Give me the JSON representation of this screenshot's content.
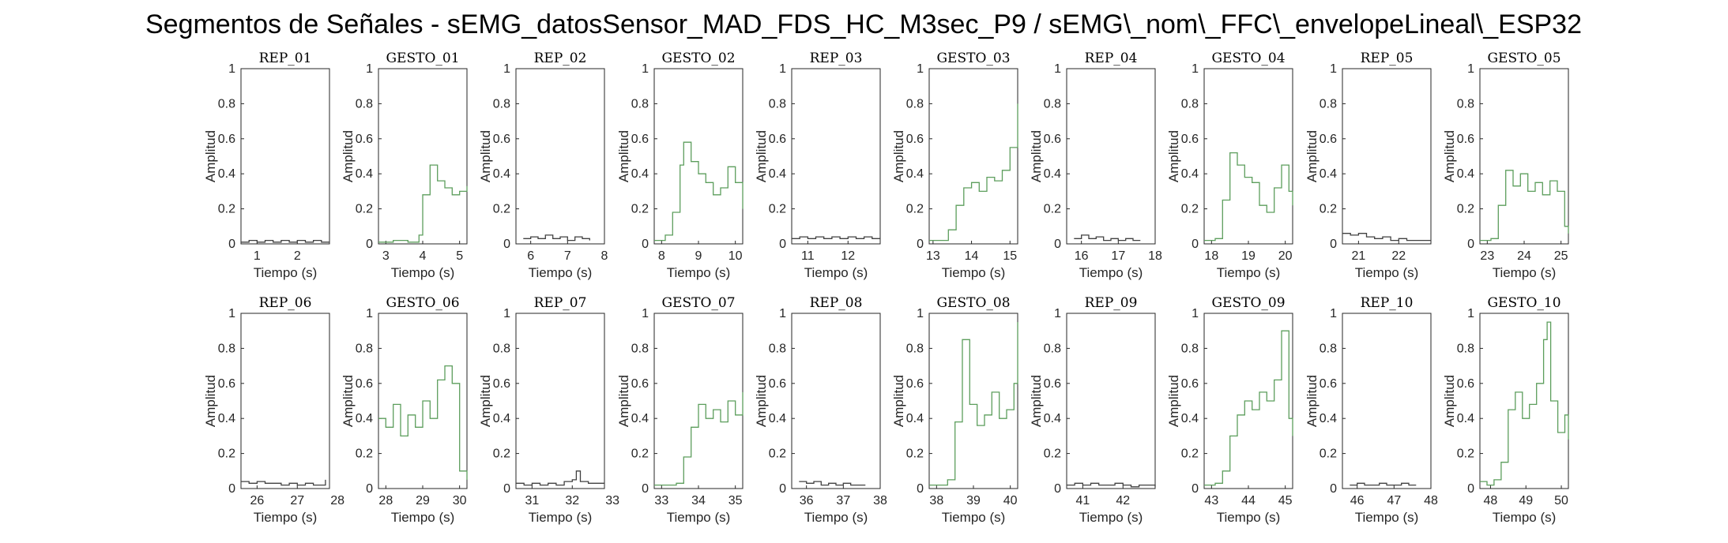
{
  "figure": {
    "title": "Segmentos de Señales - sEMG_datosSensor_MAD_FDS_HC_M3sec_P9 / sEMG\\_nom\\_FFC\\_envelopeLineal\\_ESP32"
  },
  "colors": {
    "rep_line": "#404040",
    "gesto_line": "#5c9e5c",
    "axes": "#262626",
    "background": "#ffffff"
  },
  "common": {
    "xlabel": "Tiempo (s)",
    "ylabel": "Amplitud",
    "yticks": [
      "0",
      "0.2",
      "0.4",
      "0.6",
      "0.8",
      "1"
    ]
  },
  "chart_data": [
    {
      "type": "line",
      "title": "REP_01",
      "kind": "rep",
      "xlim": [
        0.6,
        2.8
      ],
      "ylim": [
        0,
        1
      ],
      "xticks": [
        "1",
        "2"
      ],
      "x": [
        0.6,
        0.8,
        1.0,
        1.2,
        1.4,
        1.6,
        1.8,
        2.0,
        2.2,
        2.4,
        2.6,
        2.8
      ],
      "y": [
        0.01,
        0.02,
        0.01,
        0.02,
        0.01,
        0.02,
        0.01,
        0.02,
        0.01,
        0.02,
        0.01,
        0.01
      ]
    },
    {
      "type": "line",
      "title": "GESTO_01",
      "kind": "gesto",
      "xlim": [
        2.8,
        5.2
      ],
      "ylim": [
        0,
        1
      ],
      "xticks": [
        "3",
        "4",
        "5"
      ],
      "x": [
        2.8,
        3.2,
        3.6,
        3.9,
        4.0,
        4.2,
        4.4,
        4.6,
        4.8,
        5.0,
        5.2
      ],
      "y": [
        0.01,
        0.02,
        0.01,
        0.05,
        0.28,
        0.45,
        0.36,
        0.32,
        0.28,
        0.3,
        0.33
      ]
    },
    {
      "type": "line",
      "title": "REP_02",
      "kind": "rep",
      "xlim": [
        5.6,
        8.0
      ],
      "ylim": [
        0,
        1
      ],
      "xticks": [
        "6",
        "7",
        "8"
      ],
      "x": [
        5.8,
        6.0,
        6.2,
        6.4,
        6.6,
        6.8,
        7.0,
        7.2,
        7.4,
        7.6
      ],
      "y": [
        0.03,
        0.04,
        0.03,
        0.05,
        0.03,
        0.04,
        0.02,
        0.04,
        0.03,
        0.02
      ]
    },
    {
      "type": "line",
      "title": "GESTO_02",
      "kind": "gesto",
      "xlim": [
        7.8,
        10.2
      ],
      "ylim": [
        0,
        1
      ],
      "xticks": [
        "8",
        "9",
        "10"
      ],
      "x": [
        7.8,
        8.1,
        8.3,
        8.5,
        8.6,
        8.8,
        9.0,
        9.2,
        9.4,
        9.6,
        9.8,
        10.0,
        10.2
      ],
      "y": [
        0.02,
        0.05,
        0.18,
        0.45,
        0.58,
        0.47,
        0.4,
        0.35,
        0.28,
        0.32,
        0.44,
        0.35,
        0.2
      ]
    },
    {
      "type": "line",
      "title": "REP_03",
      "kind": "rep",
      "xlim": [
        10.6,
        12.8
      ],
      "ylim": [
        0,
        1
      ],
      "xticks": [
        "11",
        "12"
      ],
      "x": [
        10.6,
        10.8,
        11.0,
        11.2,
        11.4,
        11.6,
        11.8,
        12.0,
        12.2,
        12.4,
        12.6,
        12.8
      ],
      "y": [
        0.03,
        0.04,
        0.03,
        0.04,
        0.03,
        0.04,
        0.03,
        0.04,
        0.03,
        0.04,
        0.03,
        0.03
      ]
    },
    {
      "type": "line",
      "title": "GESTO_03",
      "kind": "gesto",
      "xlim": [
        12.9,
        15.2
      ],
      "ylim": [
        0,
        1
      ],
      "xticks": [
        "13",
        "14",
        "15"
      ],
      "x": [
        12.9,
        13.2,
        13.4,
        13.6,
        13.8,
        14.0,
        14.2,
        14.4,
        14.6,
        14.8,
        15.0,
        15.2
      ],
      "y": [
        0.02,
        0.02,
        0.08,
        0.22,
        0.32,
        0.35,
        0.3,
        0.38,
        0.36,
        0.42,
        0.55,
        0.8
      ]
    },
    {
      "type": "line",
      "title": "REP_04",
      "kind": "rep",
      "xlim": [
        15.6,
        18.0
      ],
      "ylim": [
        0,
        1
      ],
      "xticks": [
        "16",
        "17",
        "18"
      ],
      "x": [
        15.8,
        16.0,
        16.2,
        16.4,
        16.6,
        16.8,
        17.0,
        17.2,
        17.4,
        17.6
      ],
      "y": [
        0.03,
        0.05,
        0.03,
        0.04,
        0.02,
        0.03,
        0.02,
        0.03,
        0.02,
        0.02
      ]
    },
    {
      "type": "line",
      "title": "GESTO_04",
      "kind": "gesto",
      "xlim": [
        17.8,
        20.2
      ],
      "ylim": [
        0,
        1
      ],
      "xticks": [
        "18",
        "19",
        "20"
      ],
      "x": [
        17.8,
        18.1,
        18.3,
        18.5,
        18.7,
        18.9,
        19.1,
        19.3,
        19.5,
        19.7,
        19.9,
        20.1,
        20.2
      ],
      "y": [
        0.02,
        0.03,
        0.25,
        0.52,
        0.45,
        0.38,
        0.35,
        0.22,
        0.18,
        0.32,
        0.45,
        0.3,
        0.22
      ]
    },
    {
      "type": "line",
      "title": "REP_05",
      "kind": "rep",
      "xlim": [
        20.6,
        22.8
      ],
      "ylim": [
        0,
        1
      ],
      "xticks": [
        "21",
        "22"
      ],
      "x": [
        20.6,
        20.8,
        21.0,
        21.2,
        21.4,
        21.6,
        21.8,
        22.0,
        22.2,
        22.4,
        22.6,
        22.8
      ],
      "y": [
        0.06,
        0.05,
        0.06,
        0.04,
        0.03,
        0.04,
        0.02,
        0.03,
        0.02,
        0.02,
        0.02,
        0.02
      ]
    },
    {
      "type": "line",
      "title": "GESTO_05",
      "kind": "gesto",
      "xlim": [
        22.8,
        25.2
      ],
      "ylim": [
        0,
        1
      ],
      "xticks": [
        "23",
        "24",
        "25"
      ],
      "x": [
        22.8,
        23.1,
        23.3,
        23.5,
        23.7,
        23.9,
        24.1,
        24.3,
        24.5,
        24.7,
        24.9,
        25.1,
        25.2
      ],
      "y": [
        0.02,
        0.03,
        0.22,
        0.42,
        0.33,
        0.4,
        0.3,
        0.35,
        0.28,
        0.36,
        0.3,
        0.1,
        0.06
      ]
    },
    {
      "type": "line",
      "title": "REP_06",
      "kind": "rep",
      "xlim": [
        25.6,
        27.8
      ],
      "ylim": [
        0,
        1
      ],
      "xticks": [
        "26",
        "27",
        "28"
      ],
      "x": [
        25.6,
        25.8,
        26.0,
        26.2,
        26.4,
        26.6,
        26.8,
        27.0,
        27.2,
        27.4,
        27.6,
        27.7
      ],
      "y": [
        0.04,
        0.03,
        0.04,
        0.03,
        0.03,
        0.02,
        0.03,
        0.02,
        0.03,
        0.02,
        0.02,
        0.05
      ]
    },
    {
      "type": "line",
      "title": "GESTO_06",
      "kind": "gesto",
      "xlim": [
        27.8,
        30.2
      ],
      "ylim": [
        0,
        1
      ],
      "xticks": [
        "28",
        "29",
        "30"
      ],
      "x": [
        27.8,
        28.0,
        28.2,
        28.4,
        28.6,
        28.8,
        29.0,
        29.2,
        29.4,
        29.6,
        29.8,
        30.0,
        30.2
      ],
      "y": [
        0.4,
        0.35,
        0.48,
        0.3,
        0.42,
        0.35,
        0.5,
        0.4,
        0.62,
        0.7,
        0.6,
        0.1,
        0.05
      ]
    },
    {
      "type": "line",
      "title": "REP_07",
      "kind": "rep",
      "xlim": [
        30.6,
        32.8
      ],
      "ylim": [
        0,
        1
      ],
      "xticks": [
        "31",
        "32",
        "33"
      ],
      "x": [
        30.6,
        30.8,
        31.0,
        31.2,
        31.4,
        31.6,
        31.8,
        32.0,
        32.1,
        32.2,
        32.4,
        32.6,
        32.8
      ],
      "y": [
        0.03,
        0.02,
        0.03,
        0.02,
        0.03,
        0.02,
        0.04,
        0.05,
        0.1,
        0.04,
        0.03,
        0.03,
        0.03
      ]
    },
    {
      "type": "line",
      "title": "GESTO_07",
      "kind": "gesto",
      "xlim": [
        32.8,
        35.2
      ],
      "ylim": [
        0,
        1
      ],
      "xticks": [
        "33",
        "34",
        "35"
      ],
      "x": [
        32.8,
        33.1,
        33.4,
        33.6,
        33.8,
        34.0,
        34.2,
        34.4,
        34.6,
        34.8,
        35.0,
        35.2
      ],
      "y": [
        0.02,
        0.02,
        0.03,
        0.18,
        0.35,
        0.48,
        0.4,
        0.45,
        0.38,
        0.5,
        0.42,
        0.55
      ]
    },
    {
      "type": "line",
      "title": "REP_08",
      "kind": "rep",
      "xlim": [
        35.6,
        38.0
      ],
      "ylim": [
        0,
        1
      ],
      "xticks": [
        "36",
        "37",
        "38"
      ],
      "x": [
        35.8,
        36.0,
        36.2,
        36.4,
        36.6,
        36.8,
        37.0,
        37.2,
        37.4,
        37.6
      ],
      "y": [
        0.04,
        0.03,
        0.04,
        0.02,
        0.03,
        0.02,
        0.03,
        0.02,
        0.02,
        0.02
      ]
    },
    {
      "type": "line",
      "title": "GESTO_08",
      "kind": "gesto",
      "xlim": [
        37.8,
        40.2
      ],
      "ylim": [
        0,
        1
      ],
      "xticks": [
        "38",
        "39",
        "40"
      ],
      "x": [
        37.8,
        38.1,
        38.3,
        38.5,
        38.7,
        38.9,
        39.1,
        39.3,
        39.5,
        39.7,
        39.9,
        40.1,
        40.2
      ],
      "y": [
        0.02,
        0.02,
        0.05,
        0.38,
        0.85,
        0.48,
        0.36,
        0.42,
        0.55,
        0.4,
        0.45,
        0.6,
        0.95
      ]
    },
    {
      "type": "line",
      "title": "REP_09",
      "kind": "rep",
      "xlim": [
        40.6,
        42.8
      ],
      "ylim": [
        0,
        1
      ],
      "xticks": [
        "41",
        "42"
      ],
      "x": [
        40.6,
        40.8,
        41.0,
        41.2,
        41.4,
        41.6,
        41.8,
        42.0,
        42.2,
        42.4,
        42.6,
        42.8
      ],
      "y": [
        0.02,
        0.03,
        0.02,
        0.03,
        0.02,
        0.02,
        0.03,
        0.02,
        0.01,
        0.02,
        0.02,
        0.01
      ]
    },
    {
      "type": "line",
      "title": "GESTO_09",
      "kind": "gesto",
      "xlim": [
        42.8,
        45.2
      ],
      "ylim": [
        0,
        1
      ],
      "xticks": [
        "43",
        "44",
        "45"
      ],
      "x": [
        42.8,
        43.1,
        43.3,
        43.5,
        43.7,
        43.9,
        44.1,
        44.3,
        44.5,
        44.7,
        44.9,
        45.1,
        45.2
      ],
      "y": [
        0.02,
        0.03,
        0.1,
        0.3,
        0.42,
        0.5,
        0.45,
        0.55,
        0.5,
        0.62,
        0.9,
        0.4,
        0.3
      ]
    },
    {
      "type": "line",
      "title": "REP_10",
      "kind": "rep",
      "xlim": [
        45.6,
        48.0
      ],
      "ylim": [
        0,
        1
      ],
      "xticks": [
        "46",
        "47",
        "48"
      ],
      "x": [
        45.8,
        46.0,
        46.2,
        46.4,
        46.6,
        46.8,
        47.0,
        47.2,
        47.4,
        47.6
      ],
      "y": [
        0.02,
        0.03,
        0.02,
        0.02,
        0.03,
        0.02,
        0.02,
        0.03,
        0.02,
        0.02
      ]
    },
    {
      "type": "line",
      "title": "GESTO_10",
      "kind": "gesto",
      "xlim": [
        47.7,
        50.2
      ],
      "ylim": [
        0,
        1
      ],
      "xticks": [
        "48",
        "49",
        "50"
      ],
      "x": [
        47.7,
        47.9,
        48.1,
        48.3,
        48.5,
        48.7,
        48.9,
        49.1,
        49.3,
        49.5,
        49.6,
        49.7,
        49.9,
        50.1,
        50.2
      ],
      "y": [
        0.04,
        0.02,
        0.05,
        0.15,
        0.45,
        0.55,
        0.4,
        0.48,
        0.6,
        0.85,
        0.95,
        0.5,
        0.32,
        0.42,
        0.28
      ]
    }
  ]
}
